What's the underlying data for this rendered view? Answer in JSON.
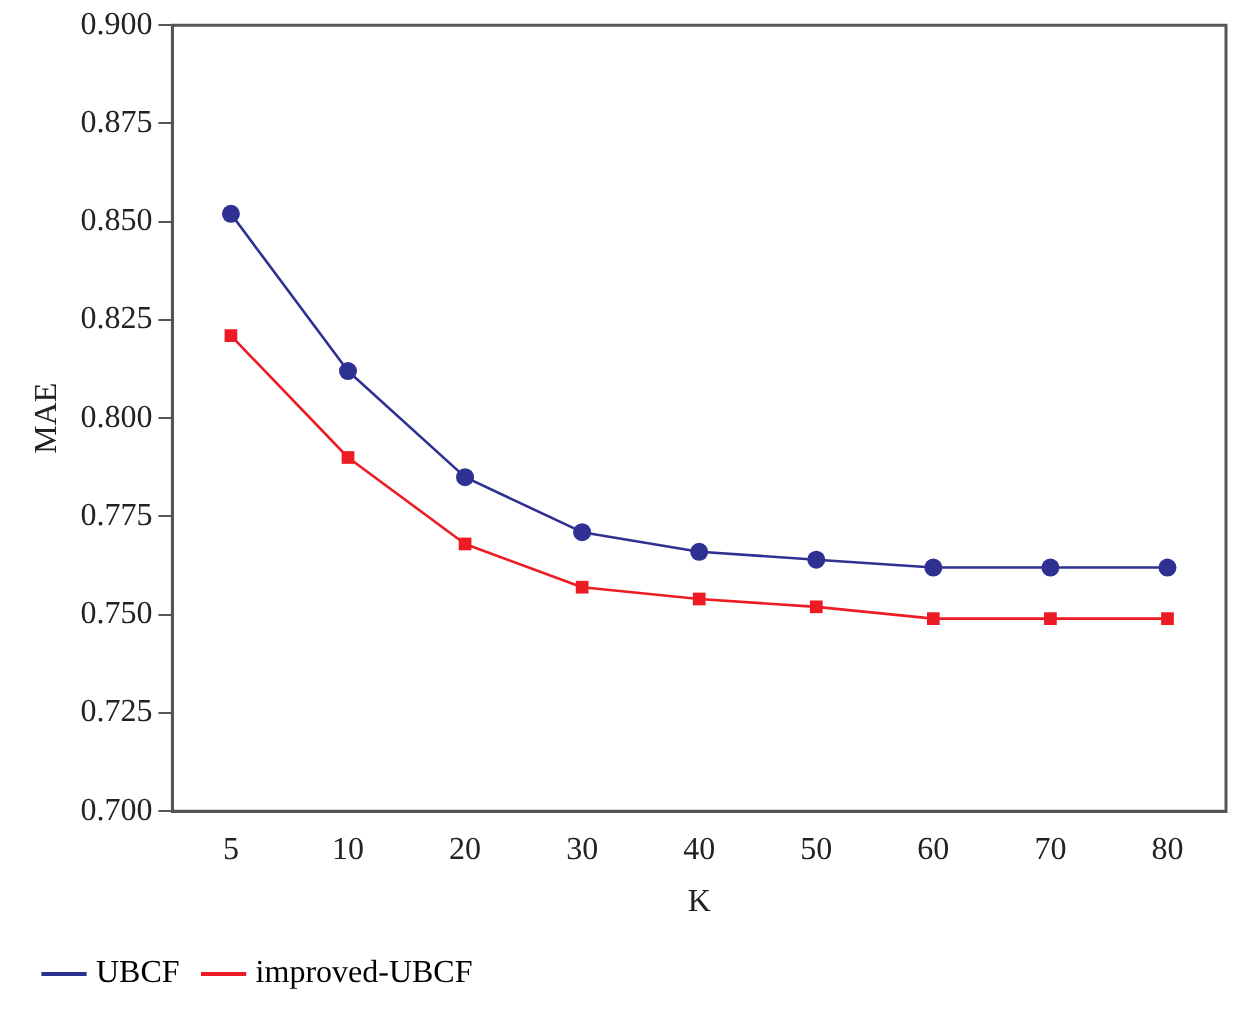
{
  "chart_data": {
    "type": "line",
    "xlabel": "K",
    "ylabel": "MAE",
    "categories": [
      "5",
      "10",
      "20",
      "30",
      "40",
      "50",
      "60",
      "70",
      "80"
    ],
    "series": [
      {
        "name": "UBCF",
        "color": "#2e3192",
        "marker": "circle",
        "values": [
          0.852,
          0.812,
          0.785,
          0.771,
          0.766,
          0.764,
          0.762,
          0.762,
          0.762
        ]
      },
      {
        "name": "improved-UBCF",
        "color": "#ed1c24",
        "marker": "square",
        "values": [
          0.821,
          0.79,
          0.768,
          0.757,
          0.754,
          0.752,
          0.749,
          0.749,
          0.749
        ]
      }
    ],
    "ylim": [
      0.7,
      0.9
    ],
    "yticks": [
      {
        "value": 0.7,
        "label": "0.700"
      },
      {
        "value": 0.725,
        "label": "0.725"
      },
      {
        "value": 0.75,
        "label": "0.750"
      },
      {
        "value": 0.775,
        "label": "0.775"
      },
      {
        "value": 0.8,
        "label": "0.800"
      },
      {
        "value": 0.825,
        "label": "0.825"
      },
      {
        "value": 0.85,
        "label": "0.850"
      },
      {
        "value": 0.875,
        "label": "0.875"
      },
      {
        "value": 0.9,
        "label": "0.900"
      }
    ],
    "grid": false,
    "legend": "bottom left",
    "line_style": "solid"
  }
}
